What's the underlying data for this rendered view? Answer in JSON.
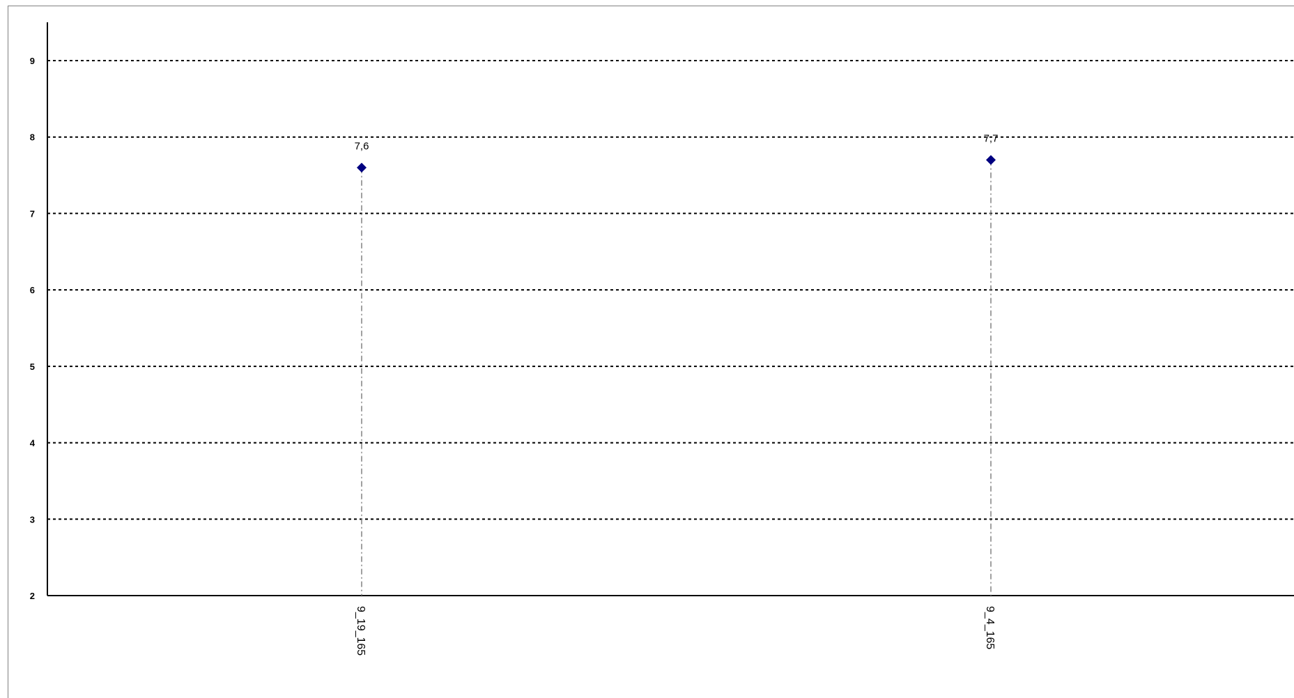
{
  "chart_data": {
    "type": "scatter",
    "categories": [
      "9_19_165",
      "9_4_165"
    ],
    "values": [
      7.6,
      7.7
    ],
    "data_labels": [
      "7,6",
      "7,7"
    ],
    "ylim": [
      2,
      9.5
    ],
    "yticks": [
      2,
      3,
      4,
      5,
      6,
      7,
      8,
      9
    ],
    "grid": true,
    "colors": {
      "marker": "#000080",
      "drop_line": "#808080",
      "grid": "#000000",
      "axis": "#000000"
    }
  }
}
